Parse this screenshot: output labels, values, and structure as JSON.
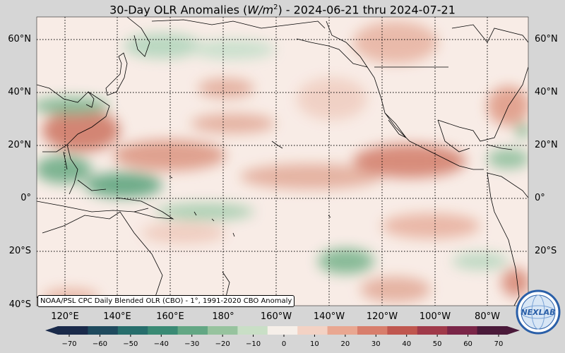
{
  "title": {
    "prefix": "30-Day OLR Anomalies (",
    "unit_var": "W/m",
    "unit_exp": "2",
    "suffix": ") - 2024-06-21 thru 2024-07-21"
  },
  "lat_labels": [
    "60°N",
    "40°N",
    "20°N",
    "0°",
    "20°S",
    "40°S"
  ],
  "lon_labels": [
    "120°E",
    "140°E",
    "160°E",
    "180°",
    "160°W",
    "140°W",
    "120°W",
    "100°W",
    "80°W"
  ],
  "source_note": "NOAA/PSL CPC Daily Blended OLR (CBO) - 1°, 1991-2020 CBO Anomaly",
  "colorbar": {
    "ticks": [
      "−70",
      "−60",
      "−50",
      "−40",
      "−30",
      "−20",
      "−10",
      "0",
      "10",
      "20",
      "30",
      "40",
      "50",
      "60",
      "70"
    ],
    "colors": [
      "#1a2a4a",
      "#1f4a5e",
      "#276e6c",
      "#3a8a74",
      "#63a784",
      "#97c39e",
      "#c9dfc6",
      "#f6efe9",
      "#f3d2c4",
      "#e9a791",
      "#d87e6c",
      "#c0574f",
      "#a03a4a",
      "#7a2648",
      "#4a1a3a"
    ]
  },
  "logo_text": "NEXLAB"
}
